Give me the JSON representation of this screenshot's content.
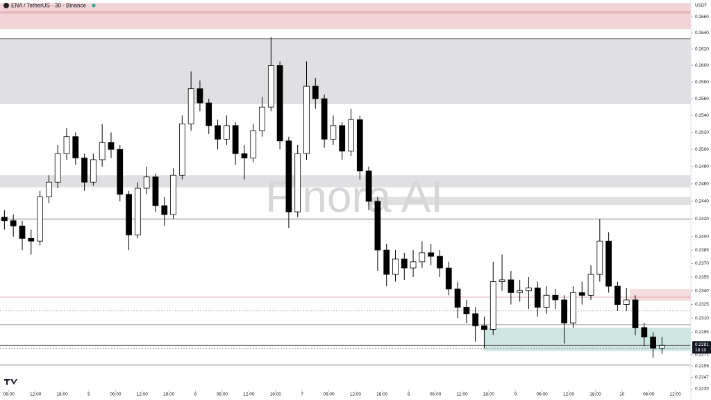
{
  "chart_data": {
    "type": "candlestick",
    "title": "ENA / TetherUS · 30 · Binance",
    "watermark": "Finora AI",
    "currency": "USDT",
    "last_price": 0.2281,
    "countdown": "18:10",
    "log": true,
    "ylim": [
      0.2235,
      0.2681
    ],
    "yticks": [
      {
        "value": 0.266,
        "label": "0.2660"
      },
      {
        "value": 0.264,
        "label": "0.2640"
      },
      {
        "value": 0.262,
        "label": "0.2620"
      },
      {
        "value": 0.26,
        "label": "0.2600"
      },
      {
        "value": 0.258,
        "label": "0.2580"
      },
      {
        "value": 0.256,
        "label": "0.2560"
      },
      {
        "value": 0.254,
        "label": "0.2540"
      },
      {
        "value": 0.252,
        "label": "0.2520"
      },
      {
        "value": 0.25,
        "label": "0.2500"
      },
      {
        "value": 0.248,
        "label": "0.2480"
      },
      {
        "value": 0.246,
        "label": "0.2460"
      },
      {
        "value": 0.244,
        "label": "0.2440"
      },
      {
        "value": 0.242,
        "label": "0.2420"
      },
      {
        "value": 0.24,
        "label": "0.2400"
      },
      0.2385,
      {
        "value": 0.237,
        "label": "0.2370"
      },
      0.2355,
      {
        "value": 0.234,
        "label": "0.2340"
      },
      0.2325,
      {
        "value": 0.231,
        "label": "0.2310"
      },
      0.2295,
      0.2271,
      0.2259,
      0.2247,
      0.2235
    ],
    "xlim": [
      -2,
      153.5
    ],
    "xticks": [
      {
        "value": 0,
        "label": "06:00"
      },
      {
        "value": 6,
        "label": "12:00"
      },
      {
        "value": 12,
        "label": "18:00"
      },
      {
        "value": 18,
        "label": "5"
      },
      {
        "value": 24,
        "label": "06:00"
      },
      {
        "value": 30,
        "label": "12:00"
      },
      {
        "value": 36,
        "label": "18:00"
      },
      {
        "value": 42,
        "label": "6"
      },
      {
        "value": 48,
        "label": "06:00"
      },
      {
        "value": 54,
        "label": "12:00"
      },
      {
        "value": 60,
        "label": "18:00"
      },
      {
        "value": 66,
        "label": "7"
      },
      {
        "value": 72,
        "label": "06:00"
      },
      {
        "value": 78,
        "label": "12:00"
      },
      {
        "value": 84,
        "label": "18:00"
      },
      {
        "value": 90,
        "label": "8"
      },
      {
        "value": 96,
        "label": "06:00"
      },
      {
        "value": 102,
        "label": "12:00"
      },
      {
        "value": 108,
        "label": "18:00"
      },
      {
        "value": 114,
        "label": "9"
      },
      {
        "value": 120,
        "label": "06:00"
      },
      {
        "value": 126,
        "label": "12:00"
      },
      {
        "value": 132,
        "label": "18:00"
      },
      {
        "value": 138,
        "label": "10"
      },
      {
        "value": 144,
        "label": "06:00"
      },
      {
        "value": 150,
        "label": "12:00"
      }
    ],
    "up_color": "#ffffff",
    "down_color": "#000000",
    "candles": {
      "x": [
        -1,
        1,
        3,
        5,
        7,
        9,
        11,
        13,
        15,
        17,
        19,
        21,
        23,
        25,
        27,
        29,
        31,
        33,
        35,
        37,
        39,
        41,
        43,
        45,
        47,
        49,
        51,
        53,
        55,
        57,
        59,
        61,
        63,
        65,
        67,
        69,
        71,
        73,
        75,
        77,
        79,
        81,
        83,
        85,
        87,
        89,
        91,
        93,
        95,
        97,
        99,
        101,
        103,
        105,
        107,
        109,
        111,
        113,
        115,
        117,
        119,
        121,
        123,
        125,
        127,
        129,
        131,
        133,
        135,
        137,
        139,
        141,
        143,
        145,
        147
      ],
      "open": [
        0.2422,
        0.2418,
        0.2412,
        0.2398,
        0.2395,
        0.2445,
        0.2462,
        0.2495,
        0.2515,
        0.249,
        0.2462,
        0.2488,
        0.2508,
        0.25,
        0.2448,
        0.2402,
        0.2455,
        0.2468,
        0.2435,
        0.2425,
        0.247,
        0.253,
        0.2572,
        0.2555,
        0.2528,
        0.2512,
        0.2528,
        0.2495,
        0.249,
        0.2522,
        0.255,
        0.26,
        0.251,
        0.2428,
        0.2495,
        0.2575,
        0.256,
        0.2512,
        0.2528,
        0.2498,
        0.2535,
        0.2475,
        0.244,
        0.2385,
        0.2358,
        0.2375,
        0.2365,
        0.2372,
        0.2382,
        0.2378,
        0.2365,
        0.2342,
        0.2322,
        0.2315,
        0.2302,
        0.2298,
        0.235,
        0.2352,
        0.2338,
        0.234,
        0.2343,
        0.2322,
        0.2335,
        0.233,
        0.2305,
        0.2338,
        0.2335,
        0.2358,
        0.2395,
        0.2345,
        0.2325,
        0.233,
        0.23,
        0.229,
        0.2278
      ],
      "high": [
        0.243,
        0.2425,
        0.2418,
        0.2408,
        0.2452,
        0.247,
        0.2505,
        0.2525,
        0.252,
        0.2495,
        0.2495,
        0.253,
        0.252,
        0.2505,
        0.2452,
        0.2462,
        0.248,
        0.2472,
        0.2445,
        0.2478,
        0.254,
        0.2593,
        0.2582,
        0.256,
        0.2535,
        0.254,
        0.2532,
        0.2505,
        0.253,
        0.2562,
        0.2635,
        0.2605,
        0.2515,
        0.2505,
        0.2605,
        0.2585,
        0.2565,
        0.254,
        0.2532,
        0.2548,
        0.254,
        0.248,
        0.2445,
        0.2392,
        0.2385,
        0.2382,
        0.2385,
        0.2395,
        0.2392,
        0.2385,
        0.2372,
        0.235,
        0.233,
        0.2322,
        0.2312,
        0.2372,
        0.238,
        0.2362,
        0.2352,
        0.2355,
        0.235,
        0.2345,
        0.2342,
        0.2335,
        0.2345,
        0.235,
        0.2368,
        0.242,
        0.2405,
        0.235,
        0.2343,
        0.2335,
        0.2305,
        0.2295,
        0.229
      ],
      "low": [
        0.2408,
        0.24,
        0.2385,
        0.238,
        0.239,
        0.2438,
        0.2455,
        0.2488,
        0.2482,
        0.2452,
        0.2458,
        0.248,
        0.249,
        0.244,
        0.2385,
        0.2398,
        0.2448,
        0.2428,
        0.2412,
        0.242,
        0.2465,
        0.2522,
        0.2545,
        0.2518,
        0.25,
        0.2505,
        0.2482,
        0.2465,
        0.2485,
        0.2515,
        0.2545,
        0.25,
        0.241,
        0.2422,
        0.2488,
        0.2548,
        0.2502,
        0.2505,
        0.2488,
        0.2492,
        0.2465,
        0.243,
        0.2362,
        0.2345,
        0.235,
        0.2352,
        0.2355,
        0.2365,
        0.2368,
        0.2355,
        0.2335,
        0.231,
        0.2305,
        0.2285,
        0.2278,
        0.2292,
        0.234,
        0.2325,
        0.2328,
        0.232,
        0.2312,
        0.2315,
        0.232,
        0.2283,
        0.23,
        0.2325,
        0.233,
        0.235,
        0.2338,
        0.2318,
        0.2318,
        0.2292,
        0.228,
        0.2268,
        0.2272
      ],
      "close": [
        0.2418,
        0.2412,
        0.2398,
        0.2395,
        0.2445,
        0.2462,
        0.2495,
        0.2515,
        0.249,
        0.2462,
        0.2488,
        0.2508,
        0.25,
        0.2448,
        0.2402,
        0.2455,
        0.2468,
        0.2435,
        0.2425,
        0.247,
        0.253,
        0.2572,
        0.2555,
        0.2528,
        0.2512,
        0.2528,
        0.2495,
        0.249,
        0.2522,
        0.255,
        0.26,
        0.251,
        0.2428,
        0.2495,
        0.2575,
        0.256,
        0.2512,
        0.2528,
        0.2498,
        0.2535,
        0.2475,
        0.244,
        0.2385,
        0.2358,
        0.2375,
        0.2365,
        0.2372,
        0.2382,
        0.2378,
        0.2365,
        0.2342,
        0.2322,
        0.2315,
        0.2302,
        0.2298,
        0.235,
        0.2352,
        0.2338,
        0.234,
        0.2343,
        0.2322,
        0.2335,
        0.233,
        0.2305,
        0.2338,
        0.2335,
        0.2358,
        0.2395,
        0.2345,
        0.2325,
        0.233,
        0.23,
        0.229,
        0.2278,
        0.2281
      ]
    },
    "zones": [
      {
        "from": 0.26446,
        "to": 0.26773,
        "start": -2,
        "color": "#f2d4d6"
      },
      {
        "from": 0.2664,
        "to": 0.2667,
        "start": -2,
        "color": "#e3b8bc"
      },
      {
        "from": 0.25535,
        "to": 0.26328,
        "start": -2,
        "color": "#e0e0e3"
      },
      {
        "from": 0.2456,
        "to": 0.247,
        "start": -2,
        "color": "#e0e0e3"
      },
      {
        "from": 0.2436,
        "to": 0.2445,
        "start": 80.8,
        "color": "#e0e0e3"
      },
      {
        "from": 0.2329,
        "to": 0.2342,
        "start": 139.8,
        "color": "#f7dede"
      },
      {
        "from": 0.2275,
        "to": 0.23,
        "start": 106.9,
        "color": "#cde6e1"
      }
    ],
    "levels": [
      {
        "value": 0.26328,
        "color": "#555555",
        "dash": false
      },
      {
        "value": 0.242,
        "color": "#555555",
        "dash": false
      },
      {
        "value": 0.2318,
        "color": "#999999",
        "dash": true
      },
      {
        "value": 0.2303,
        "color": "#777777",
        "dash": false
      },
      {
        "value": 0.2281,
        "color": "#555555",
        "dash": false
      },
      {
        "value": 0.2278,
        "color": "#777777",
        "dash": true
      },
      {
        "value": 0.226,
        "color": "#555555",
        "dash": false
      },
      {
        "value": 0.2333,
        "color": "#d89a9f",
        "dash": false
      }
    ]
  }
}
